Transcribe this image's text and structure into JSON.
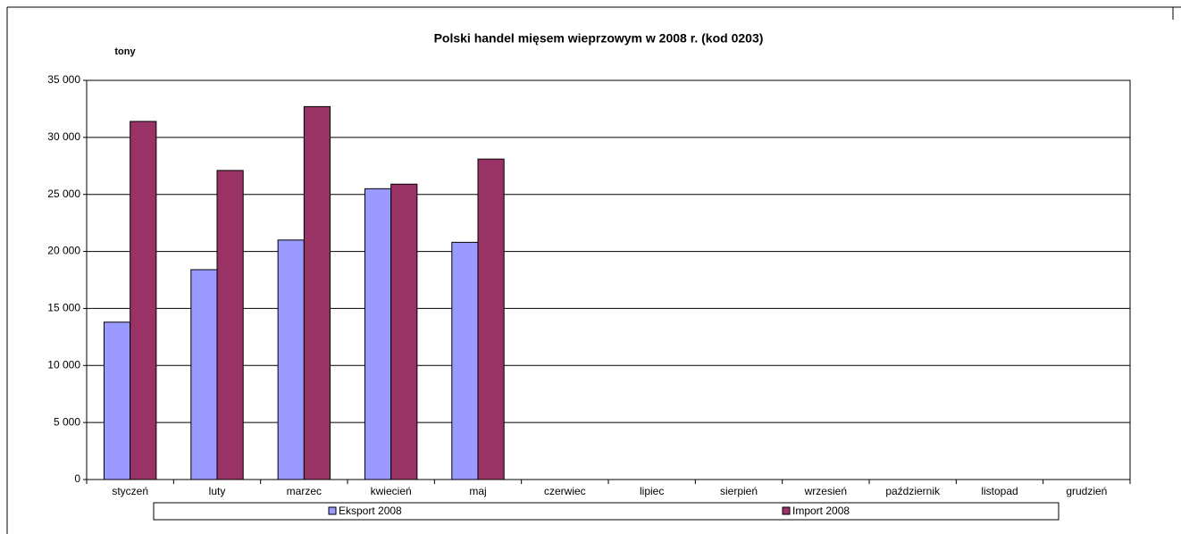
{
  "chart_data": {
    "type": "bar",
    "title": "Polski handel mięsem wieprzowym w 2008 r. (kod 0203)",
    "y_label": "tony",
    "categories": [
      "styczeń",
      "luty",
      "marzec",
      "kwiecień",
      "maj",
      "czerwiec",
      "lipiec",
      "sierpień",
      "wrzesień",
      "październik",
      "listopad",
      "grudzień"
    ],
    "series": [
      {
        "name": "Eksport 2008",
        "color": "#9999ff",
        "values": [
          13800,
          18400,
          21000,
          25500,
          20800,
          null,
          null,
          null,
          null,
          null,
          null,
          null
        ]
      },
      {
        "name": "Import 2008",
        "color": "#993366",
        "values": [
          31400,
          27100,
          32700,
          25900,
          28100,
          null,
          null,
          null,
          null,
          null,
          null,
          null
        ]
      }
    ],
    "ylim": [
      0,
      35000
    ],
    "yticks": [
      0,
      {
        "value": 5000,
        "label": "5 000"
      },
      {
        "value": 10000,
        "label": "10 000"
      },
      {
        "value": 15000,
        "label": "15 000"
      },
      {
        "value": 20000,
        "label": "20 000"
      },
      {
        "value": 25000,
        "label": "25 000"
      },
      {
        "value": 30000,
        "label": "30 000"
      },
      {
        "value": 35000,
        "label": "35 000"
      }
    ],
    "grid": true,
    "legend": "bottom"
  }
}
